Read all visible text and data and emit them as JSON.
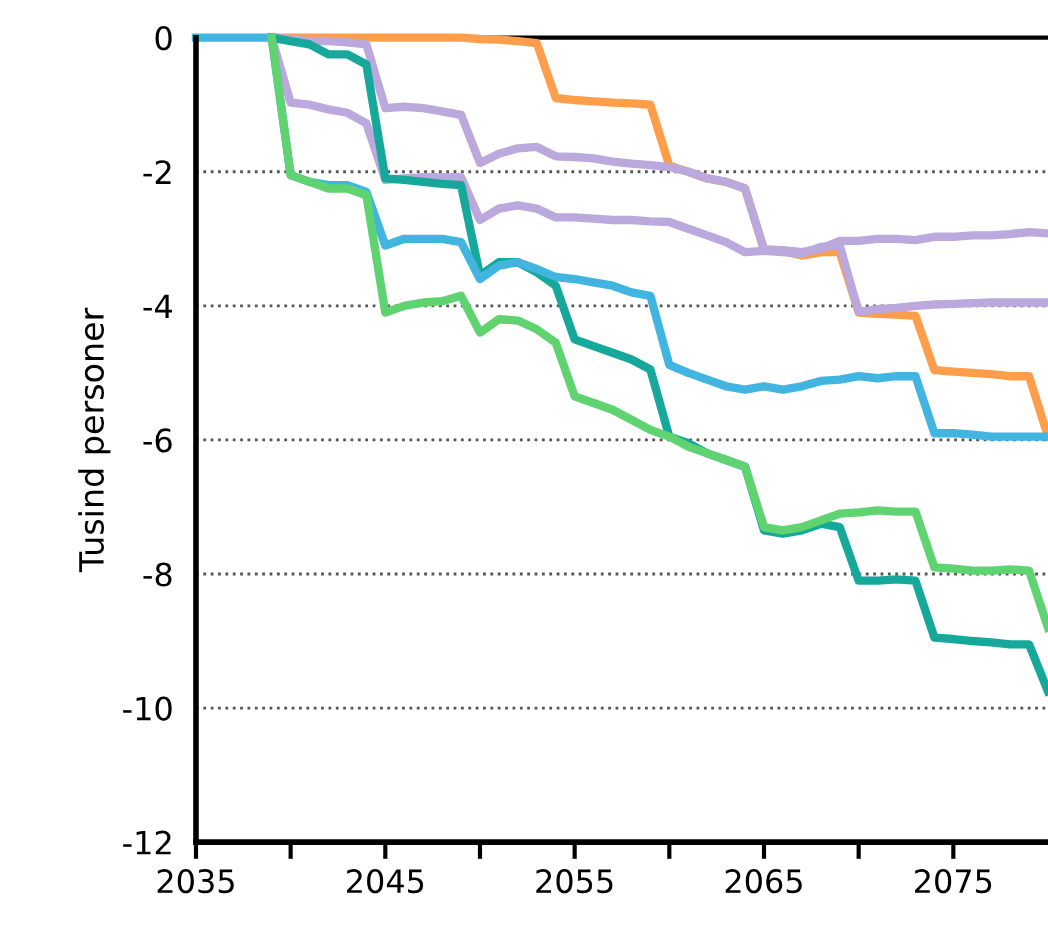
{
  "chart_data": {
    "type": "line",
    "ylabel": "Tusind personer",
    "x": [
      2035,
      2036,
      2037,
      2038,
      2039,
      2040,
      2041,
      2042,
      2043,
      2044,
      2045,
      2046,
      2047,
      2048,
      2049,
      2050,
      2051,
      2052,
      2053,
      2054,
      2055,
      2056,
      2057,
      2058,
      2059,
      2060,
      2061,
      2062,
      2063,
      2064,
      2065,
      2066,
      2067,
      2068,
      2069,
      2070,
      2071,
      2072,
      2073,
      2074,
      2075,
      2076,
      2077,
      2078,
      2079,
      2080
    ],
    "series": [
      {
        "color": "#ff9e4a",
        "values": [
          null,
          null,
          null,
          null,
          0,
          0,
          0,
          0,
          0,
          0,
          0,
          0,
          0,
          0,
          0,
          -0.02,
          -0.03,
          -0.05,
          -0.08,
          -0.9,
          -0.93,
          -0.95,
          -0.97,
          -0.98,
          -1.0,
          -1.91,
          -2.0,
          -2.1,
          -2.15,
          -2.25,
          -3.16,
          -3.18,
          -3.25,
          -3.2,
          -3.2,
          -4.1,
          -4.12,
          -4.13,
          -4.15,
          -4.96,
          -4.98,
          -5.0,
          -5.02,
          -5.05,
          -5.05,
          -5.95
        ]
      },
      {
        "color": "#bba8dc",
        "values": [
          null,
          null,
          null,
          null,
          0,
          -0.02,
          -0.05,
          -0.05,
          -0.07,
          -0.1,
          -1.05,
          -1.03,
          -1.05,
          -1.1,
          -1.15,
          -1.87,
          -1.73,
          -1.65,
          -1.63,
          -1.77,
          -1.78,
          -1.8,
          -1.85,
          -1.88,
          -1.9,
          -1.93,
          -2.0,
          -2.1,
          -2.15,
          -2.25,
          -3.16,
          -3.17,
          -3.2,
          -3.15,
          -3.03,
          -3.03,
          -3.0,
          -3.0,
          -3.02,
          -2.97,
          -2.97,
          -2.95,
          -2.95,
          -2.93,
          -2.9,
          -2.92
        ]
      },
      {
        "color": "#bba8dc",
        "values": [
          null,
          null,
          null,
          null,
          0,
          -0.97,
          -1.0,
          -1.07,
          -1.12,
          -1.28,
          -2.12,
          -2.1,
          -2.08,
          -2.08,
          -2.08,
          -2.72,
          -2.55,
          -2.5,
          -2.55,
          -2.68,
          -2.68,
          -2.7,
          -2.72,
          -2.72,
          -2.74,
          -2.75,
          -2.85,
          -2.95,
          -3.05,
          -3.2,
          -3.18,
          -3.2,
          -3.22,
          -3.12,
          -3.1,
          -4.09,
          -4.05,
          -4.03,
          -4.0,
          -3.98,
          -3.97,
          -3.96,
          -3.95,
          -3.95,
          -3.95,
          -3.95
        ]
      },
      {
        "color": "#17a89c",
        "values": [
          null,
          null,
          null,
          null,
          0,
          -0.05,
          -0.1,
          -0.25,
          -0.25,
          -0.4,
          -2.1,
          -2.12,
          -2.15,
          -2.18,
          -2.2,
          -3.55,
          -3.35,
          -3.35,
          -3.5,
          -3.7,
          -4.5,
          -4.6,
          -4.7,
          -4.8,
          -4.95,
          -5.95,
          -6.05,
          -6.2,
          -6.3,
          -6.4,
          -7.35,
          -7.4,
          -7.35,
          -7.25,
          -7.3,
          -8.1,
          -8.1,
          -8.08,
          -8.1,
          -8.95,
          -8.97,
          -9.0,
          -9.02,
          -9.05,
          -9.05,
          -9.75
        ]
      },
      {
        "color": "#42b4e0",
        "values": [
          0,
          0,
          0,
          0,
          0,
          -2.05,
          -2.15,
          -2.2,
          -2.2,
          -2.3,
          -3.1,
          -3.0,
          -3.0,
          -3.0,
          -3.05,
          -3.6,
          -3.4,
          -3.35,
          -3.45,
          -3.57,
          -3.6,
          -3.65,
          -3.7,
          -3.8,
          -3.85,
          -4.88,
          -5.0,
          -5.1,
          -5.2,
          -5.25,
          -5.2,
          -5.25,
          -5.2,
          -5.12,
          -5.1,
          -5.05,
          -5.08,
          -5.05,
          -5.05,
          -5.9,
          -5.9,
          -5.92,
          -5.95,
          -5.95,
          -5.95,
          -5.95
        ]
      },
      {
        "color": "#5fd36f",
        "values": [
          null,
          null,
          null,
          null,
          0,
          -2.05,
          -2.15,
          -2.25,
          -2.25,
          -2.35,
          -4.1,
          -4.0,
          -3.95,
          -3.93,
          -3.85,
          -4.4,
          -4.2,
          -4.22,
          -4.35,
          -4.55,
          -5.35,
          -5.45,
          -5.55,
          -5.7,
          -5.85,
          -5.95,
          -6.1,
          -6.2,
          -6.3,
          -6.4,
          -7.3,
          -7.35,
          -7.3,
          -7.2,
          -7.1,
          -7.08,
          -7.05,
          -7.07,
          -7.07,
          -7.9,
          -7.92,
          -7.95,
          -7.95,
          -7.93,
          -7.95,
          -8.8
        ]
      }
    ],
    "xlim": [
      2035,
      2080
    ],
    "xticks": [
      2035,
      {
        "value": 2040,
        "label": null
      },
      2045,
      {
        "value": 2050,
        "label": null
      },
      2055,
      {
        "value": 2060,
        "label": null
      },
      2065,
      {
        "value": 2070,
        "label": null
      },
      2075
    ],
    "ylim": [
      -12,
      0
    ],
    "yticks": [
      -12,
      -10,
      -8,
      -6,
      -4,
      -2,
      0
    ],
    "grid": "y",
    "legend": false,
    "marker": "none",
    "line_style": "solid",
    "ref_lines": [
      {
        "axis": "y",
        "value": 0,
        "color": "#000000",
        "line_style": "solid"
      }
    ]
  }
}
